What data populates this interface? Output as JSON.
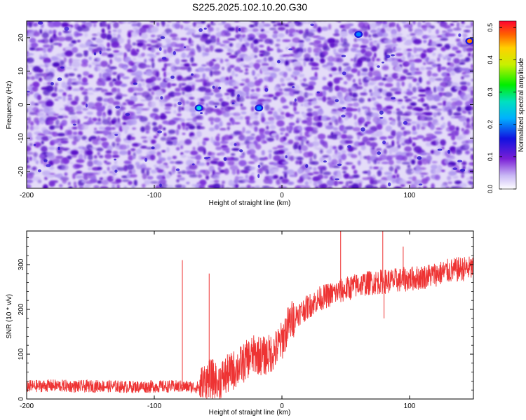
{
  "title": "S225.2025.102.10.20.G30",
  "chart_data": [
    {
      "type": "heatmap",
      "xlabel": "Height of straight line (km)",
      "ylabel": "Frequency (Hz)",
      "xlim": [
        -200,
        150
      ],
      "ylim": [
        -25,
        25
      ],
      "xticks": [
        -200,
        -100,
        0,
        100
      ],
      "xtick_labels": [
        "-200",
        "-100",
        "0",
        "100"
      ],
      "yticks": [
        -20,
        -10,
        0,
        10,
        20
      ],
      "ytick_labels": [
        "-20",
        "-10",
        "0",
        "10",
        "20"
      ],
      "colorbar": {
        "label": "Normalized spectral amplitude",
        "range": [
          0,
          0.52
        ],
        "ticks": [
          0.0,
          0.1,
          0.2,
          0.3,
          0.4,
          0.5
        ],
        "tick_labels": [
          "0.0",
          "0.1",
          "0.2",
          "0.3",
          "0.4",
          "0.5"
        ],
        "colormap": "rainbow"
      },
      "hotspots": [
        {
          "x": -65,
          "y": -1,
          "value": 0.18
        },
        {
          "x": -18,
          "y": -1,
          "value": 0.14
        },
        {
          "x": 147,
          "y": 19,
          "value": 0.45
        },
        {
          "x": 60,
          "y": 21,
          "value": 0.12
        }
      ]
    },
    {
      "type": "line",
      "xlabel": "Height of straight line (km)",
      "ylabel": "SNR (10 * v/v)",
      "xlim": [
        -200,
        150
      ],
      "ylim": [
        0,
        375
      ],
      "xticks": [
        -200,
        -100,
        0,
        100
      ],
      "xtick_labels": [
        "-200",
        "-100",
        "0",
        "100"
      ],
      "yticks": [
        0,
        100,
        200,
        300
      ],
      "ytick_labels": [
        "0",
        "100",
        "200",
        "300"
      ],
      "series": [
        {
          "color": "#ee3333",
          "x": [
            -200,
            -180,
            -160,
            -140,
            -120,
            -100,
            -80,
            -65,
            -60,
            -55,
            -50,
            -45,
            -40,
            -35,
            -30,
            -25,
            -20,
            -15,
            -10,
            -5,
            0,
            5,
            10,
            15,
            20,
            30,
            40,
            50,
            60,
            70,
            80,
            90,
            100,
            110,
            120,
            130,
            140,
            150
          ],
          "y": [
            28,
            30,
            28,
            29,
            27,
            28,
            28,
            26,
            40,
            45,
            40,
            50,
            60,
            70,
            80,
            95,
            100,
            95,
            100,
            110,
            130,
            165,
            185,
            195,
            205,
            225,
            235,
            245,
            255,
            260,
            262,
            265,
            268,
            272,
            278,
            285,
            290,
            292
          ]
        }
      ],
      "spikes": [
        {
          "x": -78,
          "y": 310
        },
        {
          "x": -57,
          "y": 280
        },
        {
          "x": 46,
          "y": 375
        },
        {
          "x": 79,
          "y": 378
        },
        {
          "x": 80,
          "y": 180
        },
        {
          "x": 95,
          "y": 340
        }
      ]
    }
  ]
}
